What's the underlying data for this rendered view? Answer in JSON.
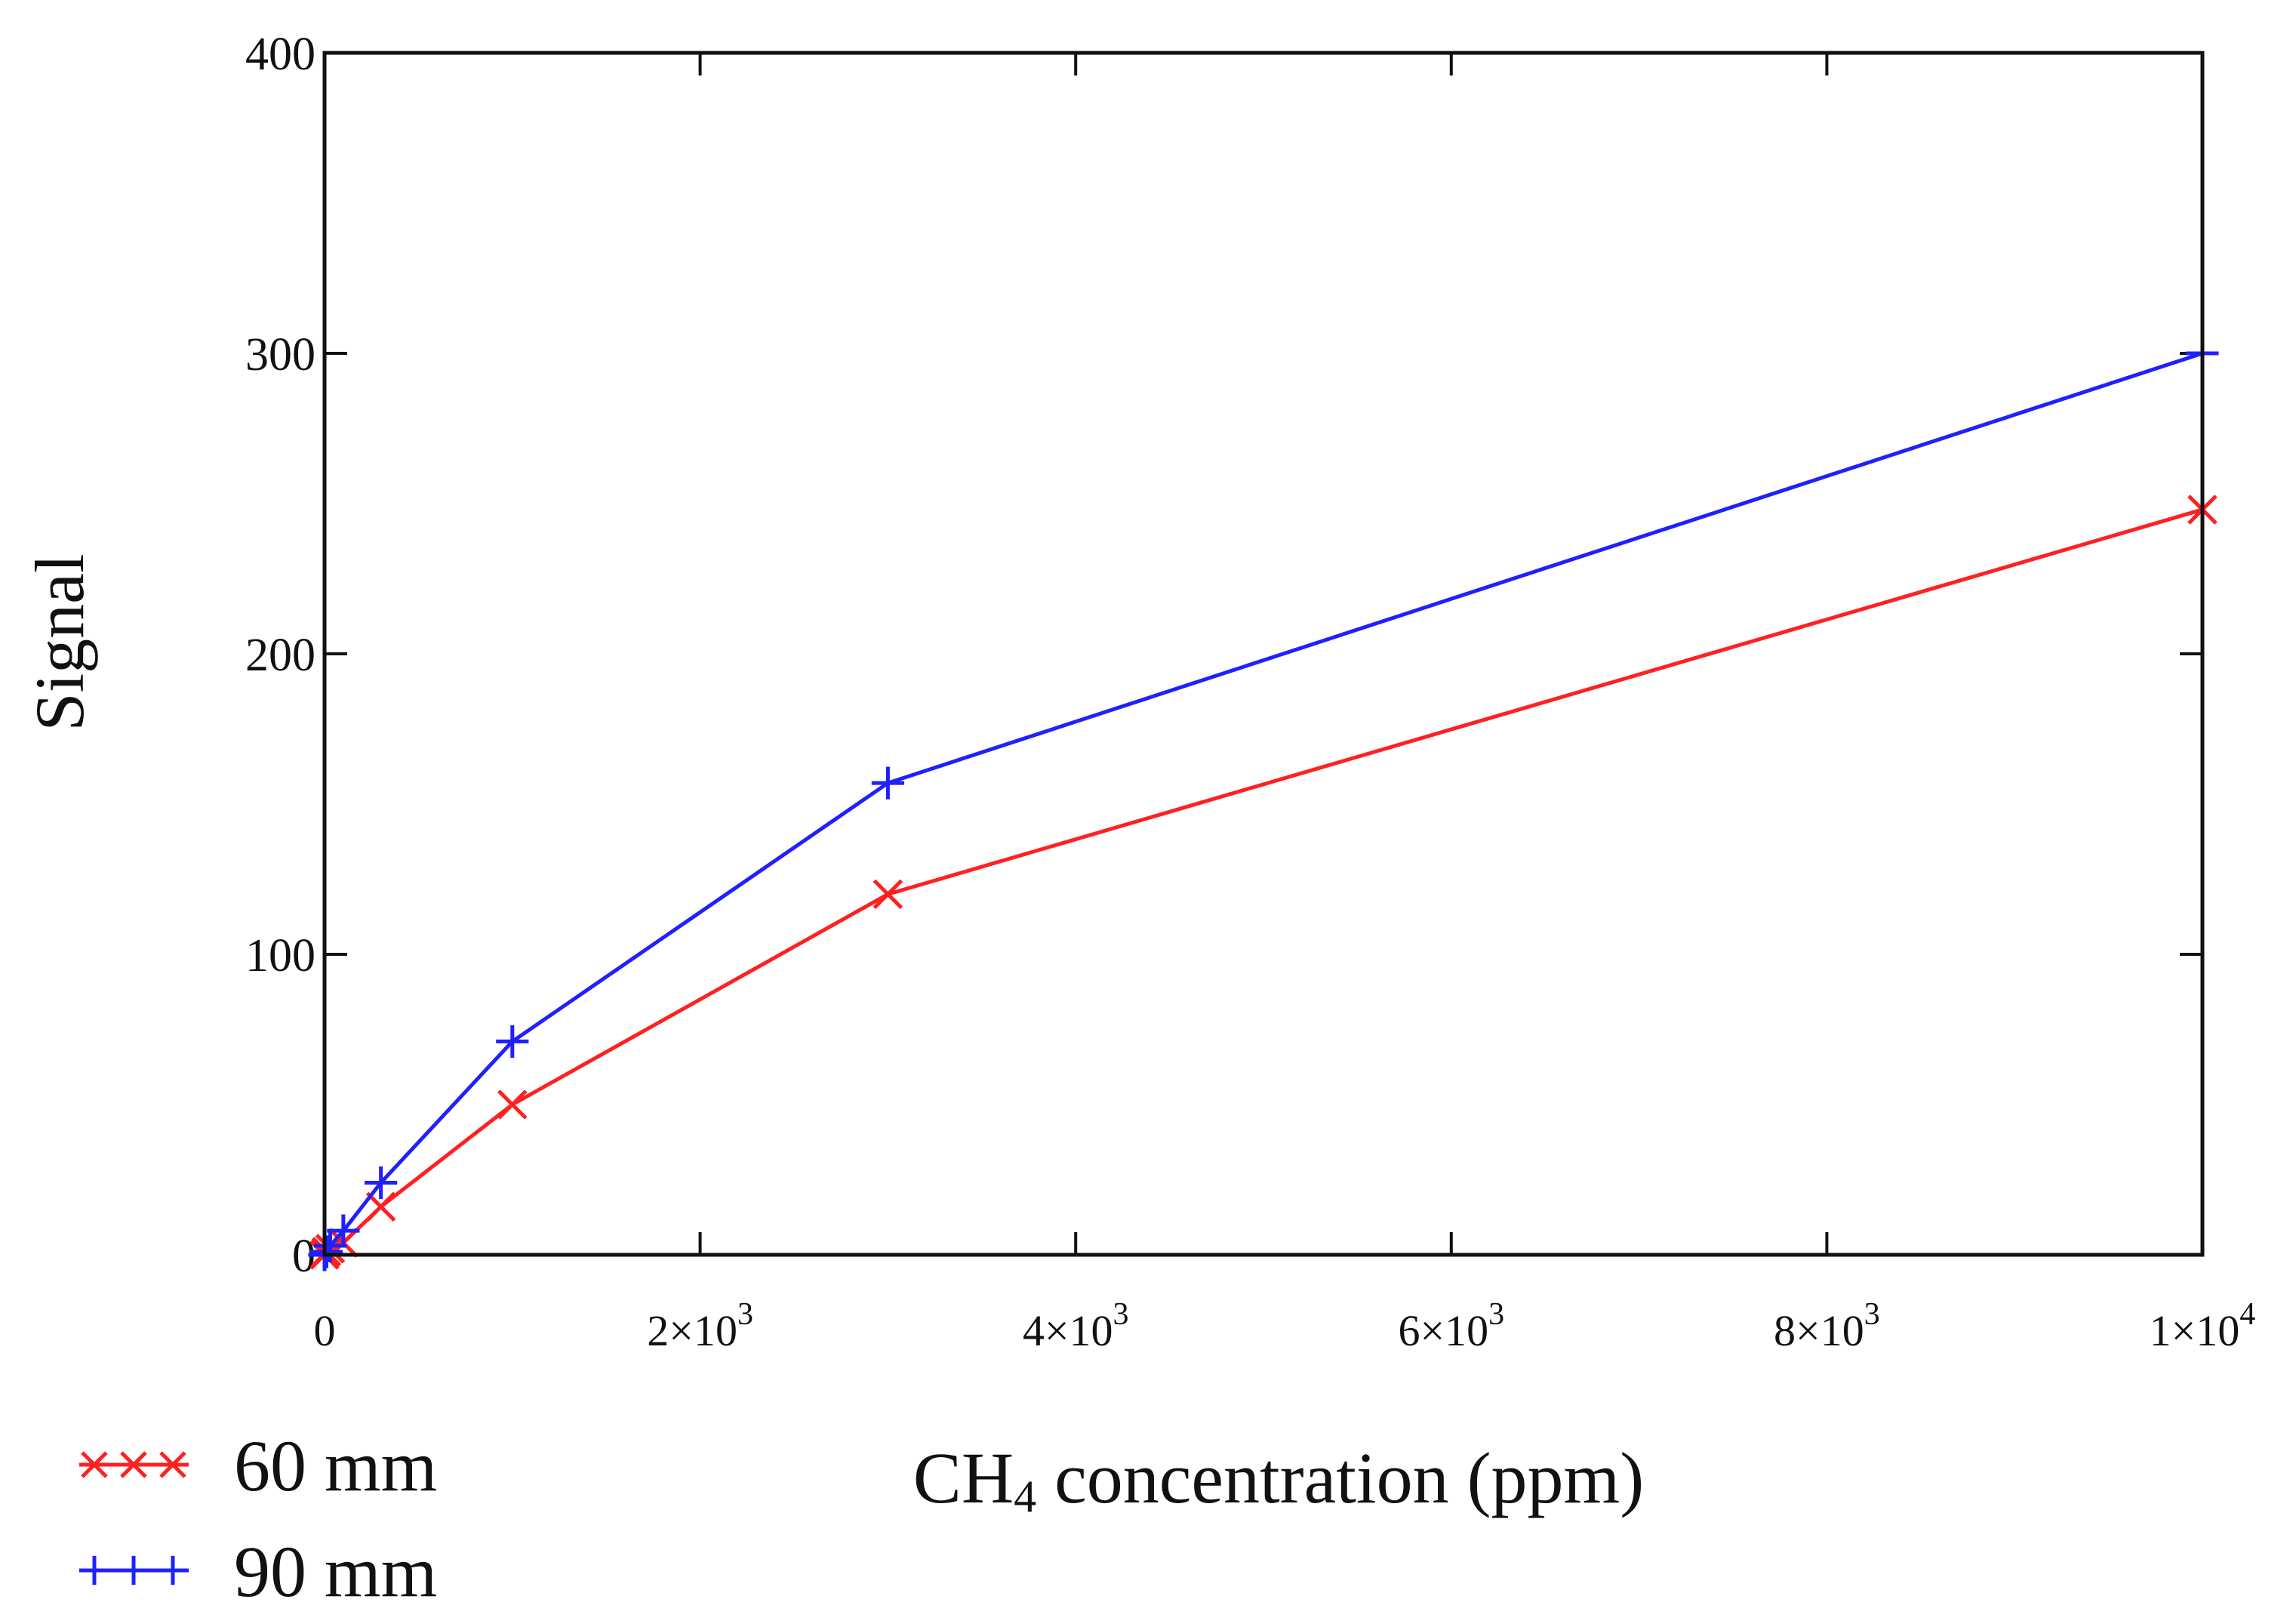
{
  "chart_data": {
    "type": "line",
    "title": "",
    "xlabel": {
      "main": "CH",
      "sub": "4",
      "rest": " concentration (ppm)"
    },
    "ylabel": "Signal",
    "xlim": [
      0,
      10000
    ],
    "ylim": [
      0,
      400
    ],
    "grid": false,
    "legend_position": "bottom-left",
    "x_ticks": [
      {
        "value": 0,
        "mantissa": "0",
        "exponent": ""
      },
      {
        "value": 2000,
        "mantissa": "2×10",
        "exponent": "3"
      },
      {
        "value": 4000,
        "mantissa": "4×10",
        "exponent": "3"
      },
      {
        "value": 6000,
        "mantissa": "6×10",
        "exponent": "3"
      },
      {
        "value": 8000,
        "mantissa": "8×10",
        "exponent": "3"
      },
      {
        "value": 10000,
        "mantissa": "1×10",
        "exponent": "4"
      }
    ],
    "y_ticks": [
      {
        "value": 0,
        "label": "0"
      },
      {
        "value": 100,
        "label": "100"
      },
      {
        "value": 200,
        "label": "200"
      },
      {
        "value": 300,
        "label": "300"
      },
      {
        "value": 400,
        "label": "400"
      }
    ],
    "series": [
      {
        "name": "60 mm",
        "color": "#ff2020",
        "marker": "x",
        "x": [
          0,
          10,
          30,
          100,
          300,
          1000,
          3000,
          10000
        ],
        "y": [
          0,
          1,
          2,
          4,
          16,
          50,
          120,
          248
        ]
      },
      {
        "name": "90 mm",
        "color": "#2020ff",
        "marker": "+",
        "x": [
          0,
          10,
          30,
          100,
          300,
          1000,
          3000,
          10000
        ],
        "y": [
          0,
          1,
          3,
          8,
          24,
          71,
          157,
          300
        ]
      }
    ]
  }
}
